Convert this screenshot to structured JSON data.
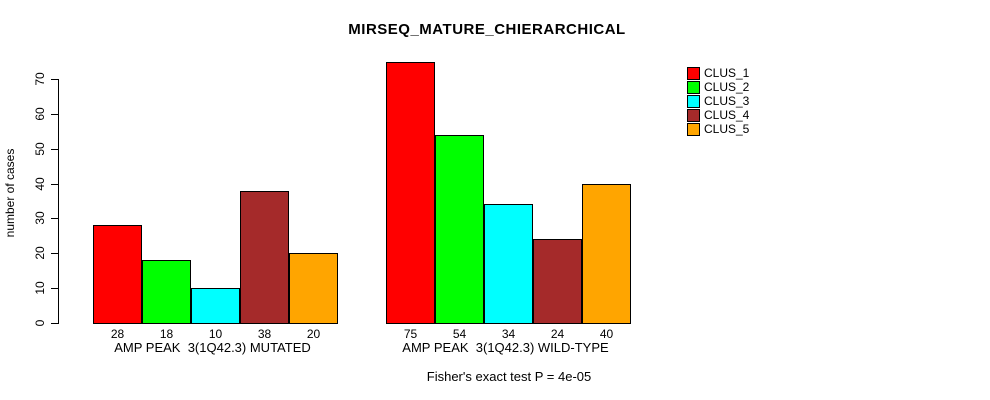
{
  "chart_data": {
    "type": "bar",
    "title": "MIRSEQ_MATURE_CHIERARCHICAL",
    "ylabel": "number of cases",
    "ylim": [
      0,
      75
    ],
    "yticks": [
      0,
      10,
      20,
      30,
      40,
      50,
      60,
      70
    ],
    "grid": false,
    "legend_position": "top-right-outside",
    "clusters": [
      {
        "name": "CLUS_1",
        "color": "#FF0000"
      },
      {
        "name": "CLUS_2",
        "color": "#00FF00"
      },
      {
        "name": "CLUS_3",
        "color": "#00FFFF"
      },
      {
        "name": "CLUS_4",
        "color": "#A52A2A"
      },
      {
        "name": "CLUS_5",
        "color": "#FFA500"
      }
    ],
    "groups": [
      {
        "label": "AMP PEAK  3(1Q42.3) MUTATED",
        "values": [
          28,
          18,
          10,
          38,
          20
        ]
      },
      {
        "label": "AMP PEAK  3(1Q42.3) WILD-TYPE",
        "values": [
          75,
          54,
          34,
          24,
          40
        ]
      }
    ],
    "footnote": "Fisher's exact test P = 4e-05"
  }
}
